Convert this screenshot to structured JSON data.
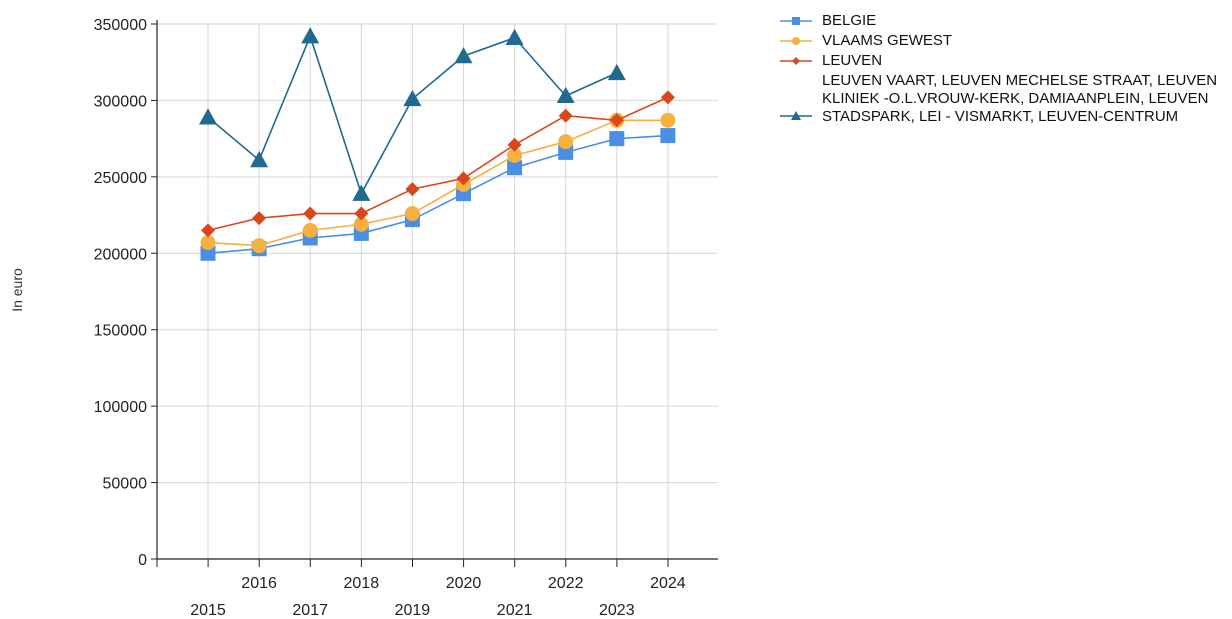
{
  "chart_data": {
    "type": "line",
    "ylabel": "In euro",
    "xlabel": "",
    "title": "",
    "ylim": [
      0,
      350000
    ],
    "yticks": [
      "0",
      "50000",
      "100000",
      "150000",
      "200000",
      "250000",
      "300000",
      "350000"
    ],
    "categories": [
      "2015",
      "2016",
      "2017",
      "2018",
      "2019",
      "2020",
      "2021",
      "2022",
      "2023",
      "2024"
    ],
    "grid": true,
    "legend_position": "right",
    "series": [
      {
        "name": "BELGIE",
        "color": "#4a8ee6",
        "marker": "square",
        "values": [
          200000,
          203000,
          210000,
          213000,
          222000,
          239000,
          256000,
          266000,
          275000,
          277000
        ]
      },
      {
        "name": "VLAAMS GEWEST",
        "color": "#f5b041",
        "marker": "circle",
        "values": [
          207000,
          205000,
          215000,
          219000,
          226000,
          245000,
          264000,
          273000,
          287000,
          287000
        ]
      },
      {
        "name": "LEUVEN",
        "color": "#d9481c",
        "marker": "diamond",
        "values": [
          215000,
          223000,
          226000,
          226000,
          242000,
          249000,
          271000,
          290000,
          287000,
          302000
        ]
      },
      {
        "name": "LEUVEN VAART, LEUVEN MECHELSE STRAAT, LEUVEN KLINIEK -O.L.VROUW-KERK, DAMIAANPLEIN, LEUVEN STADSPARK, LEI - VISMARKT, LEUVEN-CENTRUM",
        "color": "#1f6a8e",
        "marker": "triangle",
        "values": [
          289000,
          261000,
          342000,
          239000,
          301000,
          329000,
          341000,
          303000,
          318000,
          null
        ]
      }
    ]
  }
}
